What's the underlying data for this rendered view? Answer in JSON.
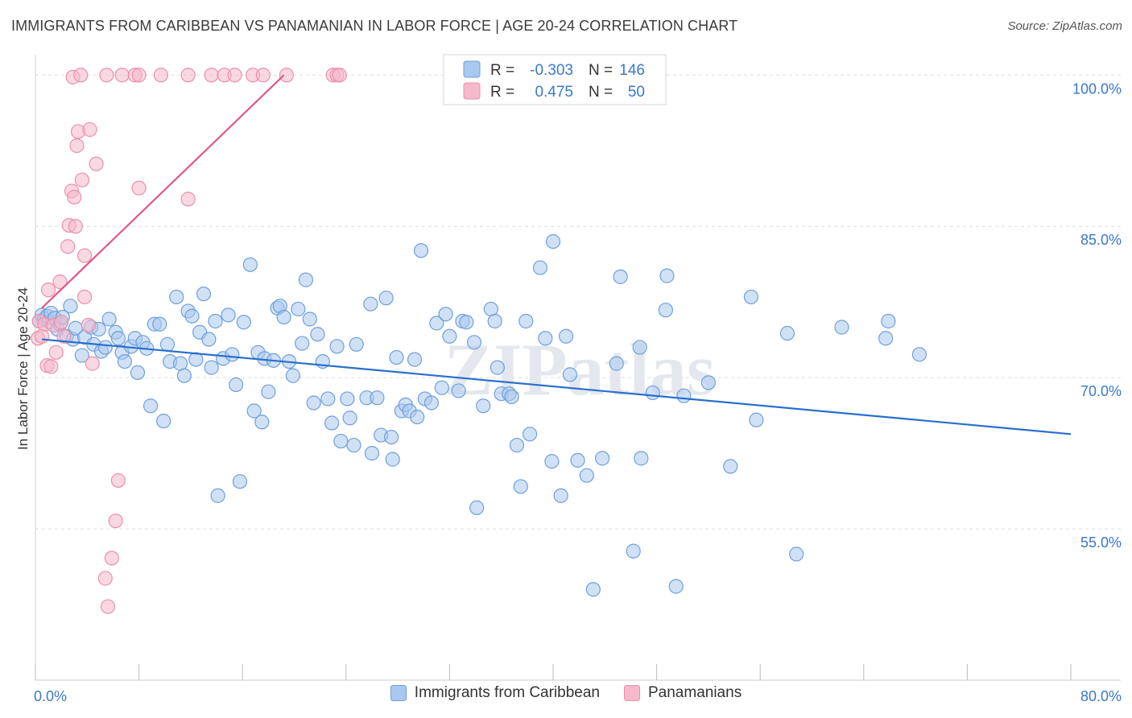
{
  "title": "IMMIGRANTS FROM CARIBBEAN VS PANAMANIAN IN LABOR FORCE | AGE 20-24 CORRELATION CHART",
  "source": "Source: ZipAtlas.com",
  "watermark": "ZIPatlas",
  "colors": {
    "blue_fill": "#a9c8ef",
    "blue_stroke": "#6f9fdc",
    "blue_line": "#2a6fce",
    "pink_fill": "#f6b8cb",
    "pink_stroke": "#ec8fab",
    "pink_line": "#e0588a",
    "axis_text": "#3a78cc",
    "grid": "#dddddd"
  },
  "legend_box": {
    "rows": [
      {
        "series": "blue",
        "r_label": "R =",
        "r_value": "-0.303",
        "n_label": "N =",
        "n_value": "146"
      },
      {
        "series": "pink",
        "r_label": "R =",
        "r_value": "0.475",
        "n_label": "N =",
        "n_value": "50"
      }
    ]
  },
  "chart_data": {
    "type": "scatter",
    "title": "IMMIGRANTS FROM CARIBBEAN VS PANAMANIAN IN LABOR FORCE | AGE 20-24 CORRELATION CHART",
    "xlabel": "",
    "ylabel": "In Labor Force | Age 20-24",
    "xlim": [
      0,
      80
    ],
    "ylim": [
      40,
      101.3
    ],
    "x_tick_labels": [
      {
        "value": 0,
        "label": "0.0%"
      },
      {
        "value": 80,
        "label": "80.0%"
      }
    ],
    "y_tick_labels": [
      {
        "value": 55,
        "label": "55.0%"
      },
      {
        "value": 70,
        "label": "70.0%"
      },
      {
        "value": 85,
        "label": "85.0%"
      },
      {
        "value": 100,
        "label": "100.0%"
      }
    ],
    "series": [
      {
        "name": "Immigrants from Caribbean",
        "color": "blue",
        "r": -0.303,
        "n": 146,
        "trend": {
          "x": [
            0.5,
            80
          ],
          "y": [
            73.8,
            64.4
          ]
        },
        "points": [
          [
            0.3,
            75.6
          ],
          [
            0.5,
            76.2
          ],
          [
            0.7,
            75.8
          ],
          [
            0.9,
            76.1
          ],
          [
            1.1,
            75.5
          ],
          [
            1.2,
            76.4
          ],
          [
            1.5,
            75.9
          ],
          [
            1.7,
            74.8
          ],
          [
            1.9,
            75.3
          ],
          [
            2.1,
            76.0
          ],
          [
            2.4,
            74.1
          ],
          [
            2.7,
            77.1
          ],
          [
            2.9,
            73.8
          ],
          [
            3.1,
            74.9
          ],
          [
            3.6,
            72.2
          ],
          [
            3.8,
            74.0
          ],
          [
            4.3,
            75.0
          ],
          [
            4.5,
            73.3
          ],
          [
            4.9,
            74.8
          ],
          [
            5.1,
            72.6
          ],
          [
            5.4,
            73.0
          ],
          [
            5.7,
            75.8
          ],
          [
            6.2,
            74.5
          ],
          [
            6.4,
            73.9
          ],
          [
            6.7,
            72.5
          ],
          [
            6.9,
            71.6
          ],
          [
            7.4,
            73.1
          ],
          [
            7.7,
            73.9
          ],
          [
            7.9,
            70.5
          ],
          [
            8.3,
            73.5
          ],
          [
            8.6,
            72.9
          ],
          [
            8.9,
            67.2
          ],
          [
            9.2,
            75.3
          ],
          [
            9.6,
            75.3
          ],
          [
            9.9,
            65.7
          ],
          [
            10.2,
            73.3
          ],
          [
            10.4,
            71.6
          ],
          [
            10.9,
            78.0
          ],
          [
            11.2,
            71.4
          ],
          [
            11.5,
            70.2
          ],
          [
            11.8,
            76.6
          ],
          [
            12.1,
            76.1
          ],
          [
            12.4,
            71.8
          ],
          [
            12.7,
            74.5
          ],
          [
            13.0,
            78.3
          ],
          [
            13.4,
            73.8
          ],
          [
            13.6,
            71.0
          ],
          [
            13.9,
            75.6
          ],
          [
            14.1,
            58.3
          ],
          [
            14.5,
            71.9
          ],
          [
            14.9,
            76.2
          ],
          [
            15.2,
            72.3
          ],
          [
            15.5,
            69.3
          ],
          [
            15.8,
            59.7
          ],
          [
            16.1,
            75.5
          ],
          [
            16.6,
            81.2
          ],
          [
            16.9,
            66.7
          ],
          [
            17.2,
            72.5
          ],
          [
            17.5,
            65.6
          ],
          [
            17.7,
            71.9
          ],
          [
            18.0,
            68.6
          ],
          [
            18.4,
            71.7
          ],
          [
            18.7,
            76.9
          ],
          [
            18.9,
            77.1
          ],
          [
            19.2,
            76.0
          ],
          [
            19.6,
            71.6
          ],
          [
            19.9,
            70.2
          ],
          [
            20.3,
            76.8
          ],
          [
            20.6,
            73.4
          ],
          [
            20.9,
            79.7
          ],
          [
            21.2,
            75.8
          ],
          [
            21.5,
            67.5
          ],
          [
            21.8,
            74.3
          ],
          [
            22.2,
            71.6
          ],
          [
            22.6,
            67.9
          ],
          [
            22.9,
            65.5
          ],
          [
            23.3,
            73.1
          ],
          [
            23.6,
            63.7
          ],
          [
            24.1,
            67.9
          ],
          [
            24.3,
            66.0
          ],
          [
            24.6,
            63.3
          ],
          [
            24.8,
            73.3
          ],
          [
            25.6,
            68.0
          ],
          [
            25.9,
            77.3
          ],
          [
            26.0,
            62.5
          ],
          [
            26.4,
            68.0
          ],
          [
            26.7,
            64.3
          ],
          [
            27.1,
            77.9
          ],
          [
            27.5,
            64.1
          ],
          [
            27.6,
            61.9
          ],
          [
            27.9,
            72.0
          ],
          [
            28.3,
            66.7
          ],
          [
            28.6,
            67.3
          ],
          [
            28.9,
            66.7
          ],
          [
            29.3,
            71.8
          ],
          [
            29.5,
            66.1
          ],
          [
            29.8,
            82.6
          ],
          [
            30.1,
            67.9
          ],
          [
            30.6,
            67.5
          ],
          [
            31.0,
            75.4
          ],
          [
            31.4,
            69.0
          ],
          [
            31.7,
            76.3
          ],
          [
            32.0,
            74.1
          ],
          [
            32.7,
            68.7
          ],
          [
            33.0,
            75.6
          ],
          [
            33.3,
            75.5
          ],
          [
            33.9,
            73.5
          ],
          [
            34.1,
            57.1
          ],
          [
            34.6,
            67.2
          ],
          [
            35.2,
            76.8
          ],
          [
            35.5,
            75.6
          ],
          [
            35.7,
            71.0
          ],
          [
            36.0,
            68.4
          ],
          [
            36.6,
            68.4
          ],
          [
            36.8,
            68.1
          ],
          [
            37.2,
            63.3
          ],
          [
            37.5,
            59.2
          ],
          [
            37.9,
            75.6
          ],
          [
            38.2,
            64.4
          ],
          [
            39.0,
            80.9
          ],
          [
            39.4,
            73.9
          ],
          [
            39.9,
            61.7
          ],
          [
            40.0,
            83.5
          ],
          [
            40.6,
            58.3
          ],
          [
            41.0,
            74.1
          ],
          [
            41.3,
            70.3
          ],
          [
            41.9,
            61.8
          ],
          [
            42.6,
            60.3
          ],
          [
            43.1,
            49.0
          ],
          [
            43.8,
            62.0
          ],
          [
            44.9,
            71.4
          ],
          [
            45.2,
            80.0
          ],
          [
            46.2,
            52.8
          ],
          [
            46.7,
            73.0
          ],
          [
            46.8,
            62.0
          ],
          [
            47.7,
            68.5
          ],
          [
            48.7,
            76.7
          ],
          [
            48.8,
            80.1
          ],
          [
            49.5,
            49.3
          ],
          [
            50.1,
            68.2
          ],
          [
            52.0,
            69.5
          ],
          [
            53.7,
            61.2
          ],
          [
            55.3,
            78.0
          ],
          [
            55.7,
            65.8
          ],
          [
            58.1,
            74.4
          ],
          [
            58.8,
            52.5
          ],
          [
            62.3,
            75.0
          ],
          [
            65.7,
            73.9
          ],
          [
            65.9,
            75.6
          ],
          [
            68.3,
            72.3
          ]
        ]
      },
      {
        "name": "Panamanians",
        "color": "pink",
        "r": 0.475,
        "n": 50,
        "trend": {
          "x": [
            0.5,
            19.2
          ],
          "y": [
            76.9,
            100.0
          ]
        },
        "points": [
          [
            0.2,
            73.9
          ],
          [
            0.3,
            75.6
          ],
          [
            0.5,
            74.1
          ],
          [
            0.7,
            75.3
          ],
          [
            0.9,
            71.2
          ],
          [
            1.0,
            78.7
          ],
          [
            1.2,
            71.1
          ],
          [
            1.4,
            75.2
          ],
          [
            1.6,
            72.5
          ],
          [
            1.9,
            79.5
          ],
          [
            2.0,
            75.5
          ],
          [
            2.2,
            74.1
          ],
          [
            2.5,
            83.0
          ],
          [
            2.6,
            85.1
          ],
          [
            2.8,
            88.5
          ],
          [
            3.0,
            87.9
          ],
          [
            3.1,
            85.0
          ],
          [
            3.2,
            93.0
          ],
          [
            3.3,
            94.4
          ],
          [
            3.6,
            89.6
          ],
          [
            3.8,
            82.1
          ],
          [
            4.1,
            75.2
          ],
          [
            4.2,
            94.6
          ],
          [
            4.4,
            71.4
          ],
          [
            4.7,
            91.2
          ],
          [
            5.4,
            50.1
          ],
          [
            5.6,
            47.3
          ],
          [
            5.9,
            52.1
          ],
          [
            6.2,
            55.8
          ],
          [
            6.4,
            59.8
          ],
          [
            2.9,
            99.8
          ],
          [
            3.5,
            100.0
          ],
          [
            5.5,
            100.0
          ],
          [
            6.7,
            100.0
          ],
          [
            7.7,
            100.0
          ],
          [
            8.0,
            100.0
          ],
          [
            9.7,
            100.0
          ],
          [
            11.8,
            100.0
          ],
          [
            13.6,
            100.0
          ],
          [
            14.6,
            100.0
          ],
          [
            15.4,
            100.0
          ],
          [
            16.8,
            100.0
          ],
          [
            17.6,
            100.0
          ],
          [
            19.4,
            100.0
          ],
          [
            23.0,
            100.0
          ],
          [
            23.3,
            100.0
          ],
          [
            23.5,
            100.0
          ],
          [
            3.8,
            78.0
          ],
          [
            8.0,
            88.8
          ],
          [
            11.8,
            87.7
          ]
        ]
      }
    ]
  },
  "bottom_legend": [
    {
      "label": "Immigrants from Caribbean",
      "color": "blue"
    },
    {
      "label": "Panamanians",
      "color": "pink"
    }
  ]
}
